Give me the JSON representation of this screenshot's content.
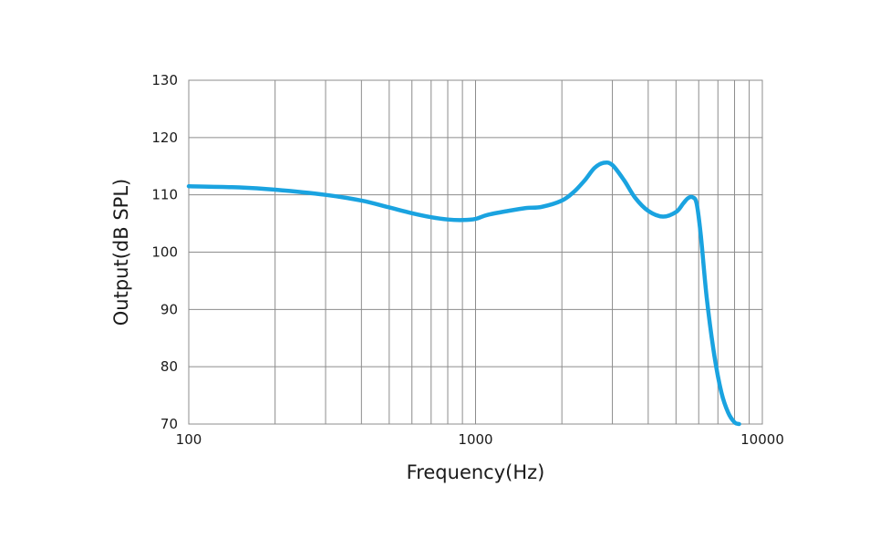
{
  "chart_data": {
    "type": "line",
    "title": "",
    "xlabel": "Frequency(Hz)",
    "ylabel": "Output(dB SPL)",
    "xscale": "log",
    "xlim": [
      100,
      10000
    ],
    "ylim": [
      70,
      130
    ],
    "x_ticks": [
      100,
      1000,
      10000
    ],
    "x_tick_labels": [
      "100",
      "1000",
      "10000"
    ],
    "y_ticks": [
      70,
      80,
      90,
      100,
      110,
      120,
      130
    ],
    "y_tick_labels": [
      "70",
      "80",
      "90",
      "100",
      "110",
      "120",
      "130"
    ],
    "grid": true,
    "legend": "none",
    "series": [
      {
        "color": "#1aa3e0",
        "x": [
          100,
          150,
          200,
          300,
          400,
          500,
          600,
          700,
          800,
          900,
          1000,
          1100,
          1300,
          1500,
          1700,
          2000,
          2200,
          2400,
          2600,
          2800,
          3000,
          3300,
          3600,
          4000,
          4500,
          5000,
          5300,
          5500,
          5700,
          5900,
          6100,
          6400,
          6800,
          7200,
          7600,
          8000,
          8300
        ],
        "y": [
          111.5,
          111.3,
          110.9,
          110.0,
          109.0,
          107.8,
          106.8,
          106.1,
          105.7,
          105.6,
          105.8,
          106.5,
          107.2,
          107.7,
          107.9,
          109.0,
          110.5,
          112.5,
          114.7,
          115.6,
          115.2,
          112.5,
          109.5,
          107.2,
          106.2,
          107.0,
          108.5,
          109.4,
          109.6,
          108.5,
          103.0,
          92.0,
          82.0,
          75.5,
          72.0,
          70.3,
          70.0
        ]
      }
    ]
  }
}
